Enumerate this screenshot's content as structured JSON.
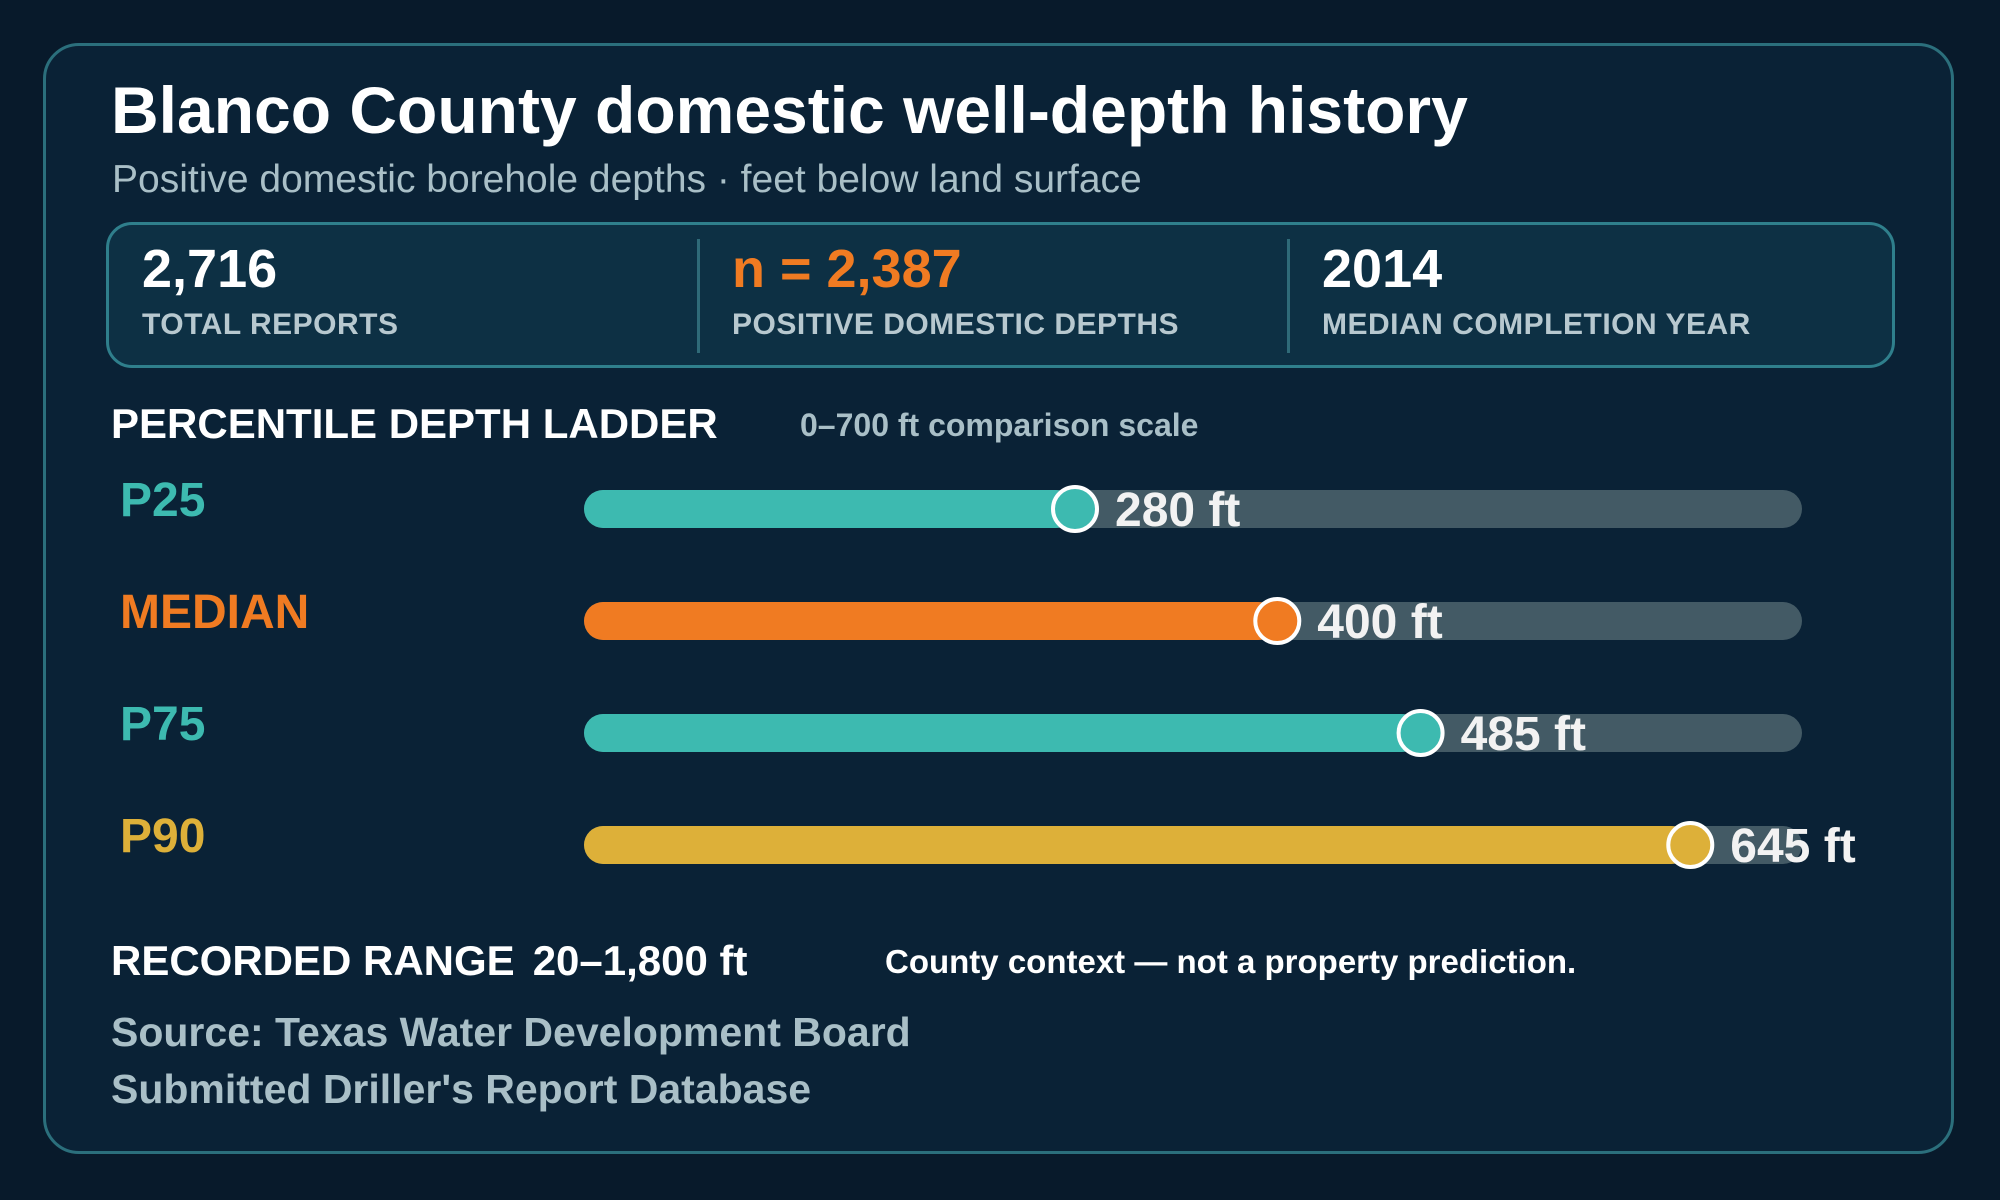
{
  "header": {
    "title": "Blanco County domestic well-depth history",
    "subtitle": "Positive domestic borehole depths · feet below land surface"
  },
  "stats": [
    {
      "value": "2,716",
      "label": "TOTAL REPORTS",
      "color": "#ffffff"
    },
    {
      "value": "n = 2,387",
      "label": "POSITIVE DOMESTIC DEPTHS",
      "color": "#f07b22"
    },
    {
      "value": "2014",
      "label": "MEDIAN COMPLETION YEAR",
      "color": "#ffffff"
    }
  ],
  "ladder": {
    "title": "PERCENTILE DEPTH LADDER",
    "scale_note": "0–700 ft comparison scale"
  },
  "chart_data": {
    "type": "bar",
    "orientation": "horizontal",
    "categories": [
      "P25",
      "MEDIAN",
      "P75",
      "P90"
    ],
    "values": [
      280,
      400,
      485,
      645
    ],
    "value_labels": [
      "280 ft",
      "400 ft",
      "485 ft",
      "645 ft"
    ],
    "colors": [
      "#3dbab0",
      "#f07b22",
      "#3dbab0",
      "#ddb039"
    ],
    "track_color": "#435a65",
    "xlim": [
      0,
      700
    ],
    "unit": "ft"
  },
  "footer": {
    "range_label": "RECORDED RANGE",
    "range_value": "20–1,800 ft",
    "context": "County context — not a property prediction.",
    "source_line1": "Source: Texas Water Development Board",
    "source_line2": "Submitted Driller's Report Database"
  }
}
